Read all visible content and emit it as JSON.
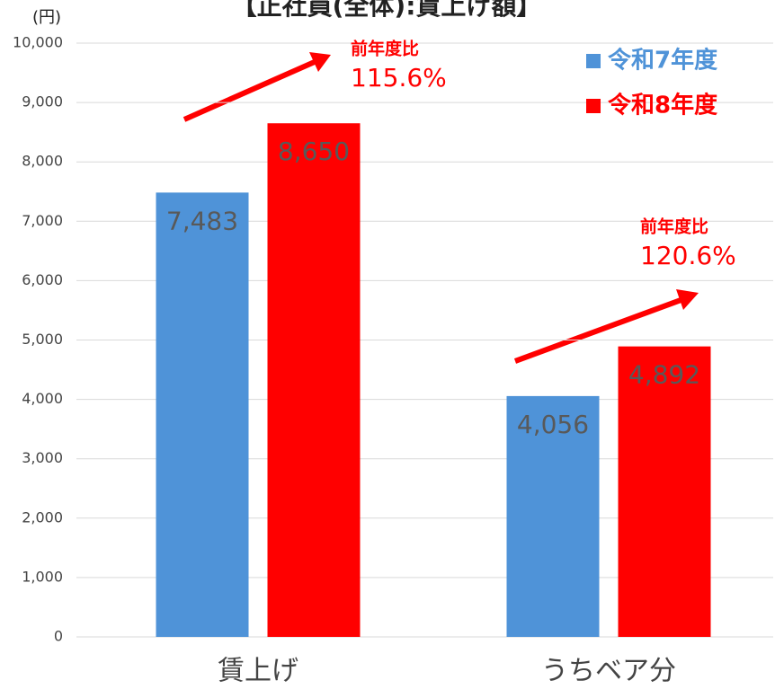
{
  "chart_data": {
    "type": "bar",
    "title": "【正社員(全体):賃上げ額】",
    "y_unit": "(円)",
    "categories": [
      "賃上げ",
      "うちベア分"
    ],
    "series": [
      {
        "name": "令和7年度",
        "color": "#4f93d8",
        "values": [
          7483,
          4056
        ],
        "value_labels": [
          "7,483",
          "4,056"
        ]
      },
      {
        "name": "令和8年度",
        "color": "#ff0000",
        "values": [
          8650,
          4892
        ],
        "value_labels": [
          "8,650",
          "4,892"
        ]
      }
    ],
    "ylim": [
      0,
      10000
    ],
    "yticks": [
      0,
      {
        "value": 1000,
        "label": "1,000"
      },
      {
        "value": 2000,
        "label": "2,000"
      },
      {
        "value": 3000,
        "label": "3,000"
      },
      {
        "value": 4000,
        "label": "4,000"
      },
      {
        "value": 5000,
        "label": "5,000"
      },
      {
        "value": 6000,
        "label": "6,000"
      },
      {
        "value": 7000,
        "label": "7,000"
      },
      {
        "value": 8000,
        "label": "8,000"
      },
      {
        "value": 9000,
        "label": "9,000"
      },
      {
        "value": 10000,
        "label": "10,000"
      }
    ],
    "grid": true,
    "legend": "top-right",
    "annotations": [
      {
        "label": "前年度比",
        "ratio": "115.6%"
      },
      {
        "label": "前年度比",
        "ratio": "120.6%"
      }
    ]
  }
}
